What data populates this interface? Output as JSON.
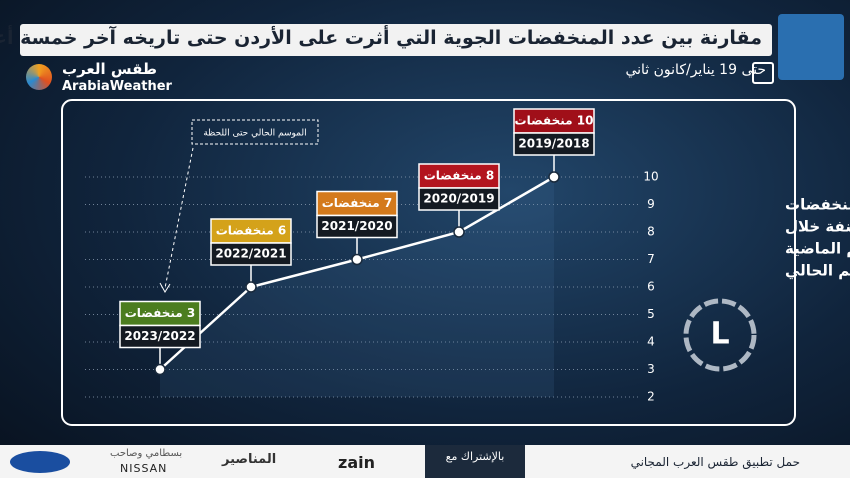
{
  "chart_data": {
    "type": "line",
    "title": "مقارنة بين عدد المنخفضات الجوية التي أثرت على الأردن حتى تاريخه آخر خمسة أعوام",
    "subtitle": "حتى 19 يناير/كانون ثاني",
    "annotation": "الموسم الحالي حتى اللحظة",
    "y_label": [
      "عدد المنخفضات",
      "المصنفة خلال",
      "المواسم الماضية",
      "والموسم الحالي"
    ],
    "categories": [
      "2023/2022",
      "2022/2021",
      "2021/2020",
      "2020/2019",
      "2019/2018"
    ],
    "series": [
      {
        "name": "عدد المنخفضات",
        "color": "#ffffff",
        "values": [
          3,
          6,
          7,
          8,
          10
        ],
        "value_labels": [
          "3 منخفضات",
          "6 منخفضات",
          "7 منخفضات",
          "8 منخفضات",
          "10 منخفضات"
        ],
        "label_colors": [
          "#4c7d1f",
          "#d4a21a",
          "#d47a1c",
          "#b3141e",
          "#a00f19"
        ]
      }
    ],
    "ylim": [
      2,
      10
    ],
    "yticks": [
      2,
      3,
      4,
      5,
      6,
      7,
      8,
      9,
      10
    ],
    "grid": true
  },
  "branding": {
    "name_ar": "طقس العرب",
    "name_en": "ArabiaWeather"
  },
  "footer": {
    "app": "حمل تطبيق طقس العرب المجاني",
    "partner": "بالإشتراك مع",
    "sponsors": [
      "zain",
      "المناصير",
      "NISSAN",
      "بسطامي وصاحب"
    ]
  }
}
